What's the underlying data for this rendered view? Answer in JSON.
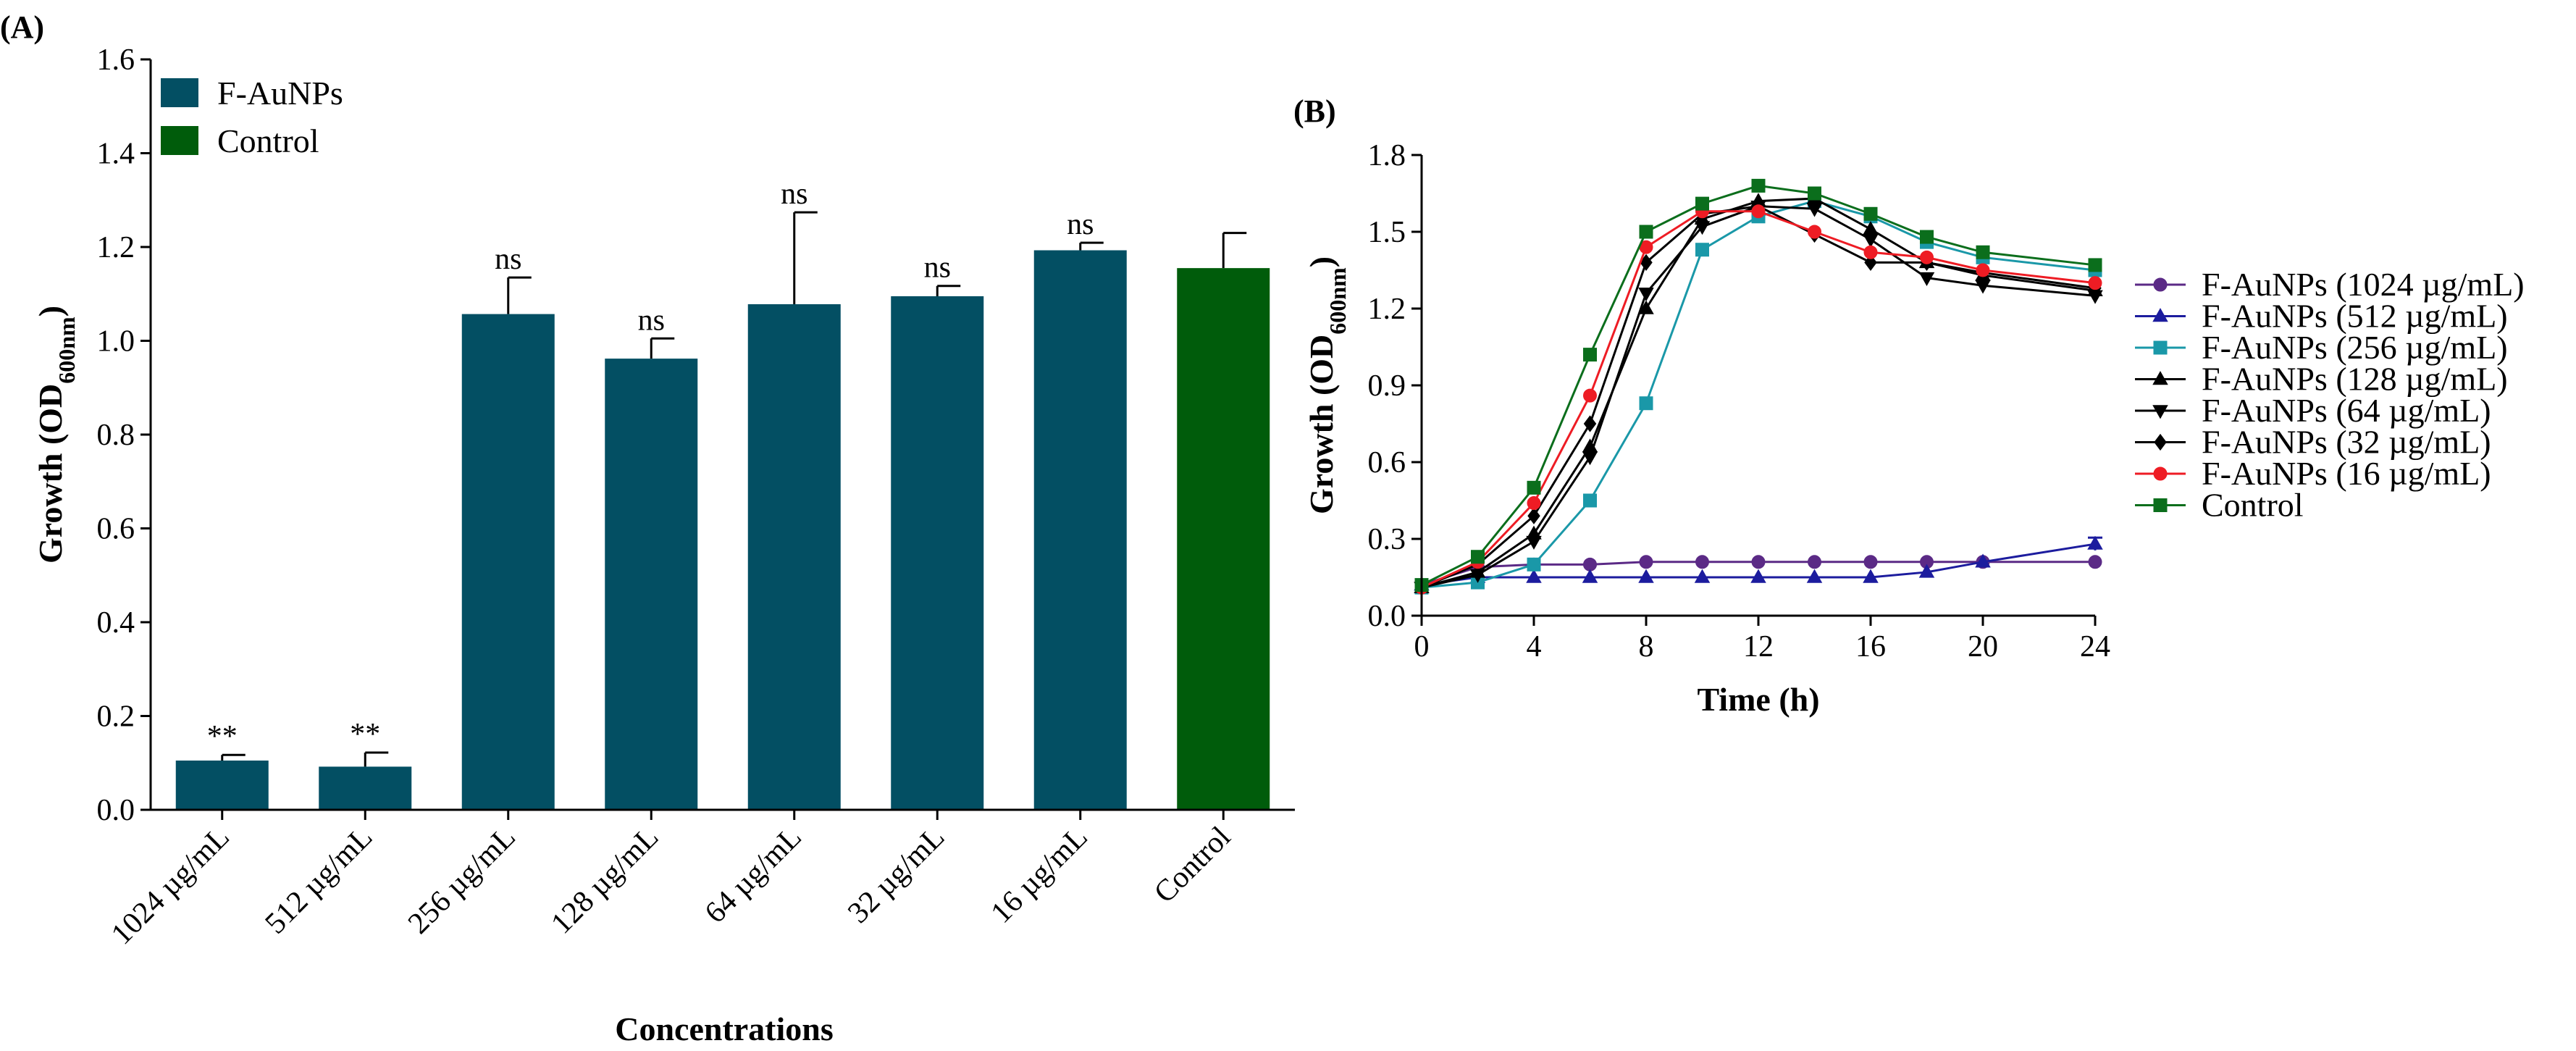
{
  "chart_data": [
    {
      "panel": "(A)",
      "type": "bar",
      "xlabel": "Concentrations",
      "ylabel": "Growth (OD",
      "ylabel_sub": "600nm",
      "ylabel_end": ")",
      "ylim": [
        0,
        1.6
      ],
      "yticks": [
        "0.0",
        "0.2",
        "0.4",
        "0.6",
        "0.8",
        "1.0",
        "1.2",
        "1.4",
        "1.6"
      ],
      "categories": [
        "1024 µg/mL",
        "512 µg/mL",
        "256 µg/mL",
        "128 µg/mL",
        "64 µg/mL",
        "32 µg/mL",
        "16 µg/mL",
        "Control"
      ],
      "values": [
        0.105,
        0.092,
        1.057,
        0.962,
        1.078,
        1.095,
        1.193,
        1.155
      ],
      "errors": [
        0.012,
        0.03,
        0.078,
        0.043,
        0.196,
        0.022,
        0.016,
        0.075
      ],
      "significance": [
        "**",
        "**",
        "ns",
        "ns",
        "ns",
        "ns",
        "ns",
        ""
      ],
      "bar_series": [
        "F-AuNPs",
        "F-AuNPs",
        "F-AuNPs",
        "F-AuNPs",
        "F-AuNPs",
        "F-AuNPs",
        "F-AuNPs",
        "Control"
      ],
      "legend": [
        {
          "label": "F-AuNPs",
          "color": "#034f63"
        },
        {
          "label": "Control",
          "color": "#005c0b"
        }
      ]
    },
    {
      "panel": "(B)",
      "type": "line",
      "xlabel": "Time (h)",
      "ylabel": "Growth (OD",
      "ylabel_sub": "600nm",
      "ylabel_end": ")",
      "xlim": [
        0,
        24
      ],
      "ylim": [
        0,
        1.8
      ],
      "xticks": [
        "0",
        "4",
        "8",
        "12",
        "16",
        "20",
        "24"
      ],
      "yticks": [
        "0.0",
        "0.3",
        "0.6",
        "0.9",
        "1.2",
        "1.5",
        "1.8"
      ],
      "x": [
        0,
        2,
        4,
        6,
        8,
        10,
        12,
        14,
        16,
        18,
        20,
        24
      ],
      "series": [
        {
          "name": "F-AuNPs (1024 µg/mL)",
          "color": "#5b2a86",
          "marker": "circle",
          "values": [
            0.12,
            0.19,
            0.2,
            0.2,
            0.21,
            0.21,
            0.21,
            0.21,
            0.21,
            0.21,
            0.21,
            0.21
          ]
        },
        {
          "name": "F-AuNPs (512 µg/mL)",
          "color": "#1c1c9e",
          "marker": "triangle-up",
          "values": [
            0.12,
            0.15,
            0.15,
            0.15,
            0.15,
            0.15,
            0.15,
            0.15,
            0.15,
            0.17,
            0.21,
            0.28
          ]
        },
        {
          "name": "F-AuNPs (256 µg/mL)",
          "color": "#1a98a8",
          "marker": "square",
          "values": [
            0.11,
            0.13,
            0.2,
            0.45,
            0.83,
            1.43,
            1.56,
            1.62,
            1.56,
            1.46,
            1.4,
            1.35
          ]
        },
        {
          "name": "F-AuNPs (128 µg/mL)",
          "color": "#000000",
          "marker": "triangle-up",
          "values": [
            0.11,
            0.17,
            0.32,
            0.66,
            1.2,
            1.55,
            1.62,
            1.63,
            1.51,
            1.38,
            1.33,
            1.27
          ]
        },
        {
          "name": "F-AuNPs (64 µg/mL)",
          "color": "#000000",
          "marker": "triangle-down",
          "values": [
            0.11,
            0.16,
            0.29,
            0.62,
            1.26,
            1.52,
            1.6,
            1.59,
            1.47,
            1.32,
            1.29,
            1.25
          ]
        },
        {
          "name": "F-AuNPs (32 µg/mL)",
          "color": "#000000",
          "marker": "diamond",
          "values": [
            0.11,
            0.2,
            0.39,
            0.75,
            1.38,
            1.57,
            1.6,
            1.49,
            1.38,
            1.38,
            1.34,
            1.28
          ]
        },
        {
          "name": "F-AuNPs (16 µg/mL)",
          "color": "#ee1c24",
          "marker": "circle",
          "values": [
            0.11,
            0.21,
            0.44,
            0.86,
            1.44,
            1.58,
            1.58,
            1.5,
            1.42,
            1.4,
            1.35,
            1.3
          ]
        },
        {
          "name": "Control",
          "color": "#0b6e1c",
          "marker": "square",
          "values": [
            0.12,
            0.23,
            0.5,
            1.02,
            1.5,
            1.61,
            1.68,
            1.65,
            1.57,
            1.48,
            1.42,
            1.37
          ]
        }
      ],
      "error_last": 0.025
    }
  ]
}
